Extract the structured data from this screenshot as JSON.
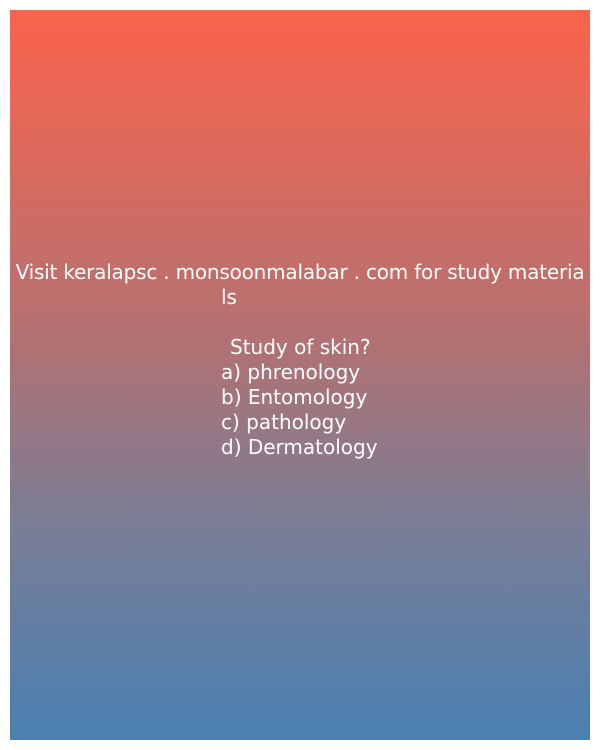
{
  "card": {
    "site_line_1": "Visit keralapsc . monsoonmalabar . com for study materia",
    "site_line_2": "ls",
    "question": "Study of skin?",
    "options": [
      "a) phrenology",
      "b) Entomology",
      "c) pathology",
      "d) Dermatology"
    ]
  },
  "colors": {
    "gradient_top": "#fb634b",
    "gradient_bottom": "#4a80b2",
    "text": "#ffffff"
  }
}
